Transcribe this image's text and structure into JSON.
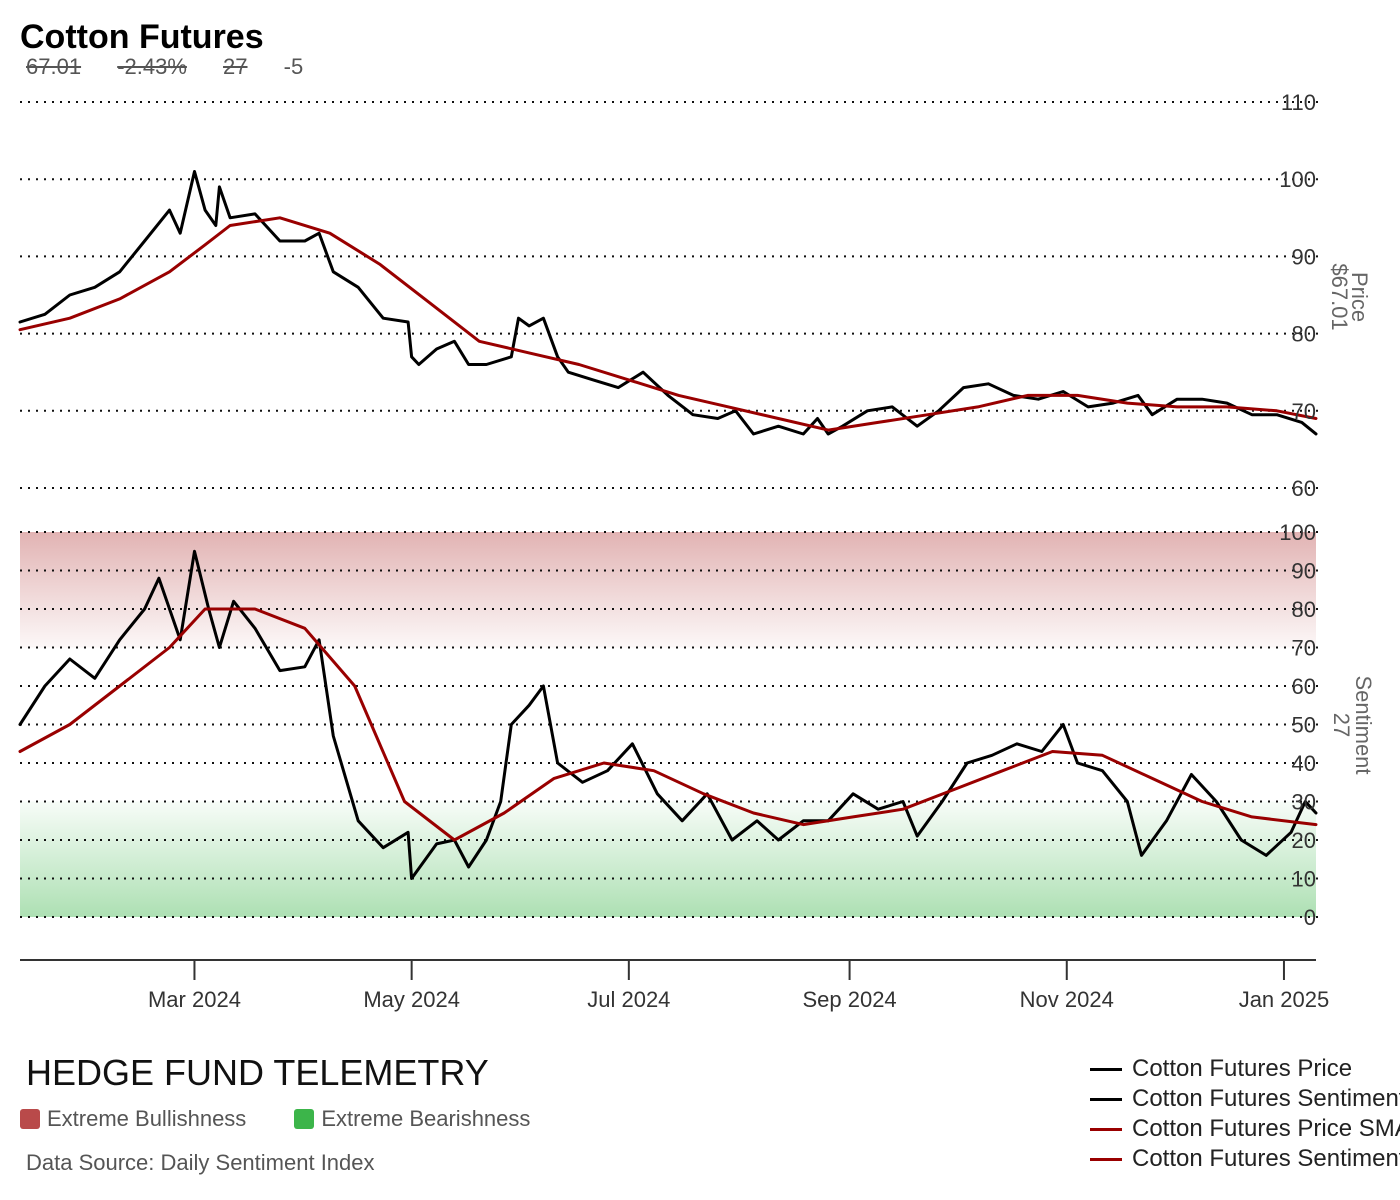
{
  "header": {
    "title": "Cotton Futures",
    "price": "67.01",
    "change": "-2.43%",
    "sentiment": "27",
    "sentiment_change": "-5"
  },
  "brand": "HEDGE FUND TELEMETRY",
  "zones": [
    {
      "label": "Extreme Bullishness",
      "color": "#b94a4a"
    },
    {
      "label": "Extreme Bearishness",
      "color": "#3cb54a"
    }
  ],
  "source": "Data Source: Daily Sentiment Index",
  "colors": {
    "price": "#000000",
    "sentiment": "#000000",
    "sma": "#990000"
  },
  "legend": [
    {
      "label": "Cotton Futures Price",
      "color": "#000000"
    },
    {
      "label": "Cotton Futures Sentiment",
      "color": "#000000"
    },
    {
      "label": "Cotton Futures Price SMA",
      "color": "#990000"
    },
    {
      "label": "Cotton Futures Sentiment SMA",
      "color": "#990000"
    }
  ],
  "chart_data": {
    "type": "line",
    "x_ticks": [
      {
        "date": "2024-03-01",
        "label": "Mar 2024"
      },
      {
        "date": "2024-05-01",
        "label": "May 2024"
      },
      {
        "date": "2024-07-01",
        "label": "Jul 2024"
      },
      {
        "date": "2024-09-01",
        "label": "Sep 2024"
      },
      {
        "date": "2024-11-01",
        "label": "Nov 2024"
      },
      {
        "date": "2025-01-01",
        "label": "Jan 2025"
      }
    ],
    "x_range": [
      "2024-01-12",
      "2025-01-10"
    ],
    "price_panel": {
      "ylabel": "Price",
      "last_value_label": "$67.01",
      "ylim": [
        60,
        110
      ],
      "ticks": [
        60,
        70,
        80,
        90,
        100,
        110
      ],
      "series": [
        {
          "name": "Cotton Futures Price",
          "color": "#000000",
          "points": [
            [
              "2024-01-12",
              81.5
            ],
            [
              "2024-01-19",
              82.5
            ],
            [
              "2024-01-26",
              85
            ],
            [
              "2024-02-02",
              86
            ],
            [
              "2024-02-09",
              88
            ],
            [
              "2024-02-16",
              92
            ],
            [
              "2024-02-23",
              96
            ],
            [
              "2024-02-26",
              93
            ],
            [
              "2024-03-01",
              101
            ],
            [
              "2024-03-04",
              96
            ],
            [
              "2024-03-07",
              94
            ],
            [
              "2024-03-08",
              99
            ],
            [
              "2024-03-11",
              95
            ],
            [
              "2024-03-18",
              95.5
            ],
            [
              "2024-03-25",
              92
            ],
            [
              "2024-04-01",
              92
            ],
            [
              "2024-04-05",
              93
            ],
            [
              "2024-04-09",
              88
            ],
            [
              "2024-04-16",
              86
            ],
            [
              "2024-04-23",
              82
            ],
            [
              "2024-04-30",
              81.5
            ],
            [
              "2024-05-01",
              77
            ],
            [
              "2024-05-03",
              76
            ],
            [
              "2024-05-08",
              78
            ],
            [
              "2024-05-13",
              79
            ],
            [
              "2024-05-17",
              76
            ],
            [
              "2024-05-22",
              76
            ],
            [
              "2024-05-29",
              77
            ],
            [
              "2024-05-31",
              82
            ],
            [
              "2024-06-03",
              81
            ],
            [
              "2024-06-07",
              82
            ],
            [
              "2024-06-11",
              77
            ],
            [
              "2024-06-14",
              75
            ],
            [
              "2024-06-21",
              74
            ],
            [
              "2024-06-28",
              73
            ],
            [
              "2024-07-05",
              75
            ],
            [
              "2024-07-12",
              72
            ],
            [
              "2024-07-19",
              69.5
            ],
            [
              "2024-07-26",
              69
            ],
            [
              "2024-07-31",
              70
            ],
            [
              "2024-08-05",
              67
            ],
            [
              "2024-08-12",
              68
            ],
            [
              "2024-08-19",
              67
            ],
            [
              "2024-08-23",
              69
            ],
            [
              "2024-08-26",
              67
            ],
            [
              "2024-08-30",
              68
            ],
            [
              "2024-09-06",
              70
            ],
            [
              "2024-09-13",
              70.5
            ],
            [
              "2024-09-20",
              68
            ],
            [
              "2024-09-26",
              70
            ],
            [
              "2024-10-03",
              73
            ],
            [
              "2024-10-10",
              73.5
            ],
            [
              "2024-10-17",
              72
            ],
            [
              "2024-10-24",
              71.5
            ],
            [
              "2024-10-31",
              72.5
            ],
            [
              "2024-11-07",
              70.5
            ],
            [
              "2024-11-14",
              71
            ],
            [
              "2024-11-21",
              72
            ],
            [
              "2024-11-25",
              69.5
            ],
            [
              "2024-12-02",
              71.5
            ],
            [
              "2024-12-09",
              71.5
            ],
            [
              "2024-12-16",
              71
            ],
            [
              "2024-12-23",
              69.5
            ],
            [
              "2024-12-30",
              69.5
            ],
            [
              "2025-01-06",
              68.5
            ],
            [
              "2025-01-10",
              67.01
            ]
          ]
        },
        {
          "name": "Cotton Futures Price SMA",
          "color": "#990000",
          "points": [
            [
              "2024-01-12",
              80.5
            ],
            [
              "2024-01-26",
              82
            ],
            [
              "2024-02-09",
              84.5
            ],
            [
              "2024-02-23",
              88
            ],
            [
              "2024-03-04",
              91.5
            ],
            [
              "2024-03-11",
              94
            ],
            [
              "2024-03-25",
              95
            ],
            [
              "2024-04-08",
              93
            ],
            [
              "2024-04-22",
              89
            ],
            [
              "2024-05-06",
              84
            ],
            [
              "2024-05-20",
              79
            ],
            [
              "2024-06-03",
              77.5
            ],
            [
              "2024-06-17",
              76
            ],
            [
              "2024-07-01",
              74
            ],
            [
              "2024-07-15",
              72
            ],
            [
              "2024-07-29",
              70.5
            ],
            [
              "2024-08-12",
              69
            ],
            [
              "2024-08-26",
              67.5
            ],
            [
              "2024-09-09",
              68.5
            ],
            [
              "2024-09-23",
              69.5
            ],
            [
              "2024-10-07",
              70.5
            ],
            [
              "2024-10-21",
              72
            ],
            [
              "2024-11-04",
              72
            ],
            [
              "2024-11-18",
              71
            ],
            [
              "2024-12-02",
              70.5
            ],
            [
              "2024-12-16",
              70.5
            ],
            [
              "2024-12-30",
              70
            ],
            [
              "2025-01-10",
              69
            ]
          ]
        }
      ]
    },
    "sentiment_panel": {
      "ylabel": "Sentiment",
      "last_value_label": "27",
      "ylim": [
        0,
        100
      ],
      "ticks": [
        0,
        10,
        20,
        30,
        40,
        50,
        60,
        70,
        80,
        90,
        100
      ],
      "bands": [
        {
          "from": 70,
          "to": 100,
          "color": "#b94a4a"
        },
        {
          "from": 0,
          "to": 30,
          "color": "#3cb54a"
        }
      ],
      "series": [
        {
          "name": "Cotton Futures Sentiment",
          "color": "#000000",
          "points": [
            [
              "2024-01-12",
              50
            ],
            [
              "2024-01-19",
              60
            ],
            [
              "2024-01-26",
              67
            ],
            [
              "2024-02-02",
              62
            ],
            [
              "2024-02-09",
              72
            ],
            [
              "2024-02-16",
              80
            ],
            [
              "2024-02-20",
              88
            ],
            [
              "2024-02-26",
              72
            ],
            [
              "2024-03-01",
              95
            ],
            [
              "2024-03-05",
              80
            ],
            [
              "2024-03-08",
              70
            ],
            [
              "2024-03-12",
              82
            ],
            [
              "2024-03-18",
              75
            ],
            [
              "2024-03-25",
              64
            ],
            [
              "2024-04-01",
              65
            ],
            [
              "2024-04-05",
              72
            ],
            [
              "2024-04-09",
              47
            ],
            [
              "2024-04-16",
              25
            ],
            [
              "2024-04-23",
              18
            ],
            [
              "2024-04-30",
              22
            ],
            [
              "2024-05-01",
              10
            ],
            [
              "2024-05-08",
              19
            ],
            [
              "2024-05-13",
              20
            ],
            [
              "2024-05-17",
              13
            ],
            [
              "2024-05-22",
              20
            ],
            [
              "2024-05-26",
              30
            ],
            [
              "2024-05-29",
              50
            ],
            [
              "2024-06-03",
              55
            ],
            [
              "2024-06-07",
              60
            ],
            [
              "2024-06-11",
              40
            ],
            [
              "2024-06-18",
              35
            ],
            [
              "2024-06-25",
              38
            ],
            [
              "2024-07-02",
              45
            ],
            [
              "2024-07-09",
              32
            ],
            [
              "2024-07-16",
              25
            ],
            [
              "2024-07-23",
              32
            ],
            [
              "2024-07-30",
              20
            ],
            [
              "2024-08-06",
              25
            ],
            [
              "2024-08-12",
              20
            ],
            [
              "2024-08-19",
              25
            ],
            [
              "2024-08-26",
              25
            ],
            [
              "2024-09-02",
              32
            ],
            [
              "2024-09-09",
              28
            ],
            [
              "2024-09-16",
              30
            ],
            [
              "2024-09-20",
              21
            ],
            [
              "2024-09-27",
              30
            ],
            [
              "2024-10-04",
              40
            ],
            [
              "2024-10-11",
              42
            ],
            [
              "2024-10-18",
              45
            ],
            [
              "2024-10-25",
              43
            ],
            [
              "2024-10-31",
              50
            ],
            [
              "2024-11-04",
              40
            ],
            [
              "2024-11-11",
              38
            ],
            [
              "2024-11-18",
              30
            ],
            [
              "2024-11-22",
              16
            ],
            [
              "2024-11-29",
              25
            ],
            [
              "2024-12-06",
              37
            ],
            [
              "2024-12-13",
              30
            ],
            [
              "2024-12-20",
              20
            ],
            [
              "2024-12-27",
              16
            ],
            [
              "2025-01-03",
              22
            ],
            [
              "2025-01-07",
              30
            ],
            [
              "2025-01-10",
              27
            ]
          ]
        },
        {
          "name": "Cotton Futures Sentiment SMA",
          "color": "#990000",
          "points": [
            [
              "2024-01-12",
              43
            ],
            [
              "2024-01-26",
              50
            ],
            [
              "2024-02-09",
              60
            ],
            [
              "2024-02-23",
              70
            ],
            [
              "2024-03-04",
              80
            ],
            [
              "2024-03-18",
              80
            ],
            [
              "2024-04-01",
              75
            ],
            [
              "2024-04-15",
              60
            ],
            [
              "2024-04-29",
              30
            ],
            [
              "2024-05-13",
              20
            ],
            [
              "2024-05-27",
              27
            ],
            [
              "2024-06-10",
              36
            ],
            [
              "2024-06-24",
              40
            ],
            [
              "2024-07-08",
              38
            ],
            [
              "2024-07-22",
              32
            ],
            [
              "2024-08-05",
              27
            ],
            [
              "2024-08-19",
              24
            ],
            [
              "2024-09-02",
              26
            ],
            [
              "2024-09-16",
              28
            ],
            [
              "2024-09-30",
              33
            ],
            [
              "2024-10-14",
              38
            ],
            [
              "2024-10-28",
              43
            ],
            [
              "2024-11-11",
              42
            ],
            [
              "2024-11-25",
              36
            ],
            [
              "2024-12-09",
              30
            ],
            [
              "2024-12-23",
              26
            ],
            [
              "2025-01-10",
              24
            ]
          ]
        }
      ]
    }
  }
}
